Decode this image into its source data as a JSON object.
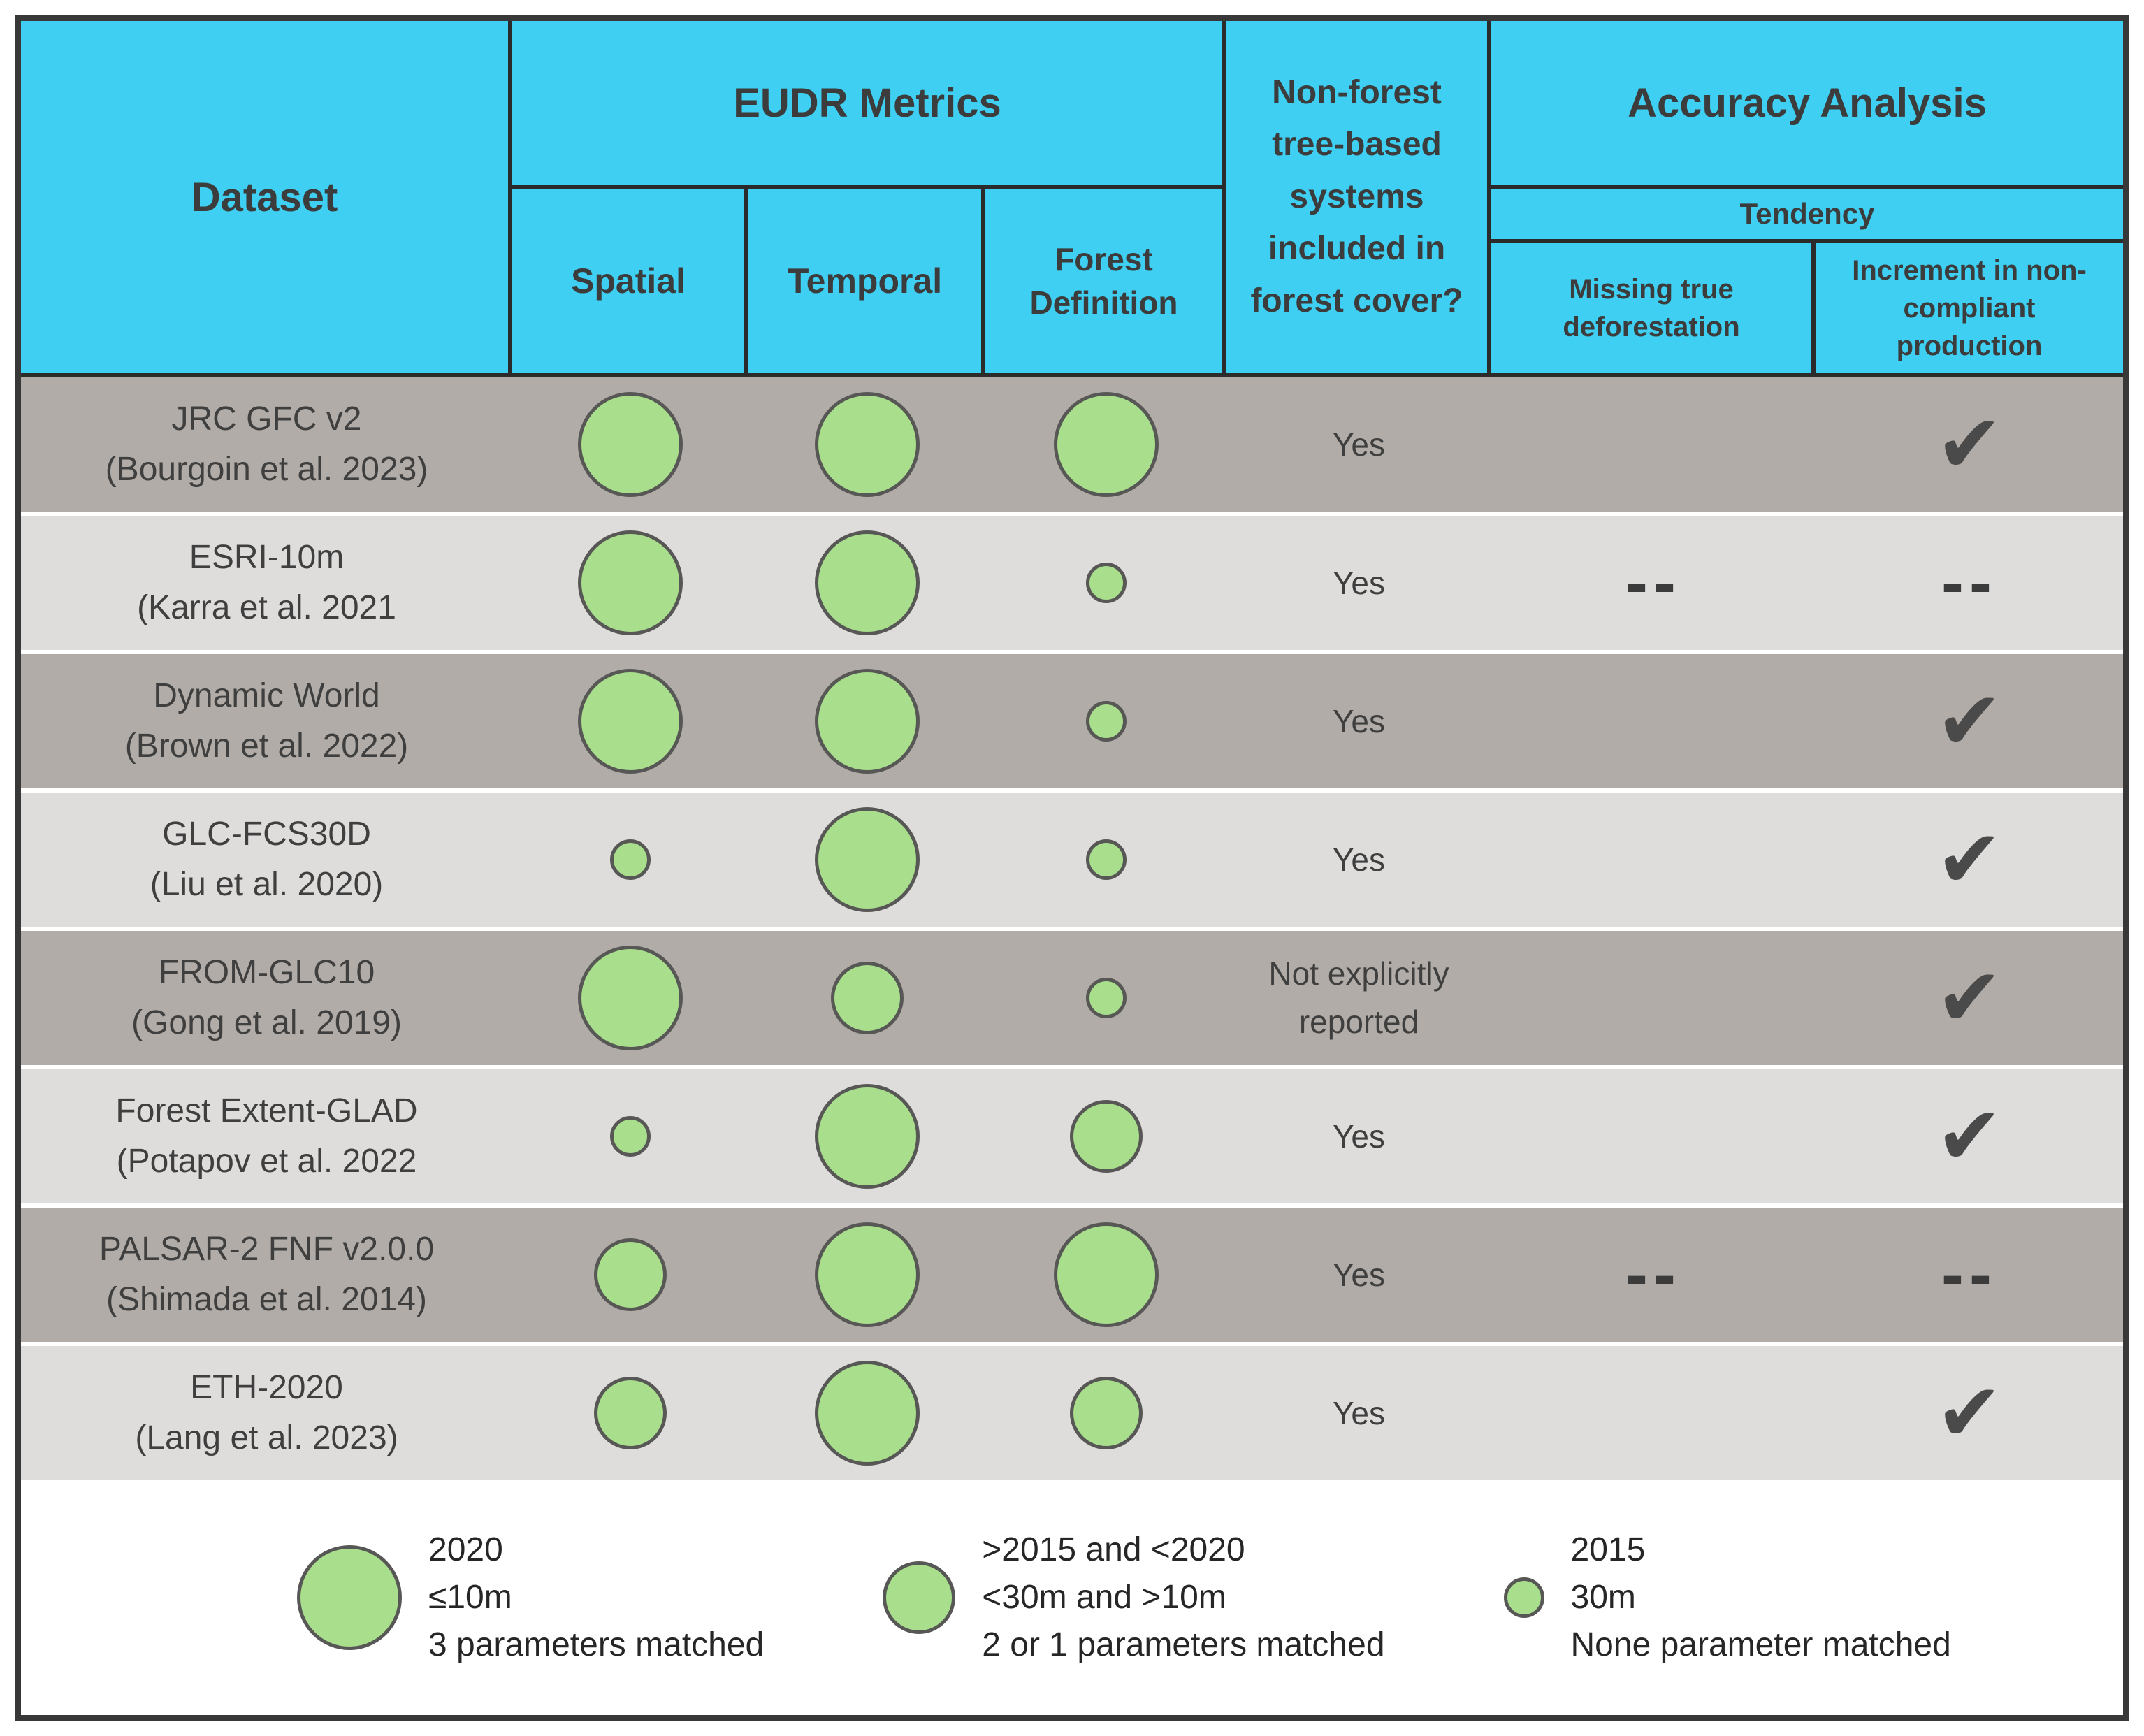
{
  "chart_data": {
    "type": "table",
    "header": {
      "dataset": "Dataset",
      "eudr_metrics": "EUDR Metrics",
      "spatial": "Spatial",
      "temporal": "Temporal",
      "forest_definition": "Forest Definition",
      "non_forest": "Non-forest tree-based systems included in forest cover?",
      "accuracy_analysis": "Accuracy Analysis",
      "tendency": "Tendency",
      "missing_true_deforestation": "Missing true deforestation",
      "increment_non_compliant": "Increment in non-compliant production"
    },
    "rows": [
      {
        "name": "JRC GFC v2",
        "citation": "(Bourgoin et al. 2023)",
        "spatial": "large",
        "temporal": "large",
        "forest_definition": "large",
        "non_forest": "Yes",
        "missing": "none",
        "increment": "check"
      },
      {
        "name": "ESRI-10m",
        "citation": "(Karra et al. 2021",
        "spatial": "large",
        "temporal": "large",
        "forest_definition": "small",
        "non_forest": "Yes",
        "missing": "dash",
        "increment": "dash"
      },
      {
        "name": "Dynamic World",
        "citation": "(Brown et al. 2022)",
        "spatial": "large",
        "temporal": "large",
        "forest_definition": "small",
        "non_forest": "Yes",
        "missing": "none",
        "increment": "check"
      },
      {
        "name": "GLC-FCS30D",
        "citation": "(Liu et al. 2020)",
        "spatial": "small",
        "temporal": "large",
        "forest_definition": "small",
        "non_forest": "Yes",
        "missing": "none",
        "increment": "check"
      },
      {
        "name": "FROM-GLC10",
        "citation": "(Gong et al. 2019)",
        "spatial": "large",
        "temporal": "medium",
        "forest_definition": "small",
        "non_forest": "Not explicitly reported",
        "missing": "none",
        "increment": "check"
      },
      {
        "name": "Forest Extent-GLAD",
        "citation": "(Potapov et al. 2022",
        "spatial": "small",
        "temporal": "large",
        "forest_definition": "medium",
        "non_forest": "Yes",
        "missing": "none",
        "increment": "check"
      },
      {
        "name": "PALSAR-2 FNF v2.0.0",
        "citation": "(Shimada et al. 2014)",
        "spatial": "medium",
        "temporal": "large",
        "forest_definition": "large",
        "non_forest": "Yes",
        "missing": "dash",
        "increment": "dash"
      },
      {
        "name": "ETH-2020",
        "citation": "(Lang et al. 2023)",
        "spatial": "medium",
        "temporal": "large",
        "forest_definition": "medium",
        "non_forest": "Yes",
        "missing": "none",
        "increment": "check"
      }
    ],
    "legend": [
      {
        "size": "large",
        "year": "2020",
        "resolution": "≤10m",
        "params": "3 parameters matched"
      },
      {
        "size": "medium",
        "year": ">2015 and <2020",
        "resolution": "<30m and >10m",
        "params": "2 or 1 parameters matched"
      },
      {
        "size": "small",
        "year": "2015",
        "resolution": "30m",
        "params": "None parameter matched"
      }
    ],
    "symbols": {
      "check": "✔",
      "dash": "--"
    }
  },
  "colors": {
    "header_bg": "#3ECFF2",
    "row_dark": "#B1ACA7",
    "row_light": "#DEDDDC",
    "circle_fill": "#A8DE8C",
    "circle_stroke": "#575756",
    "grid_line": "#2B2B2B",
    "check": "#4A4A4A",
    "header_text": "#3C3C3C",
    "body_text": "#3F3F3F"
  }
}
